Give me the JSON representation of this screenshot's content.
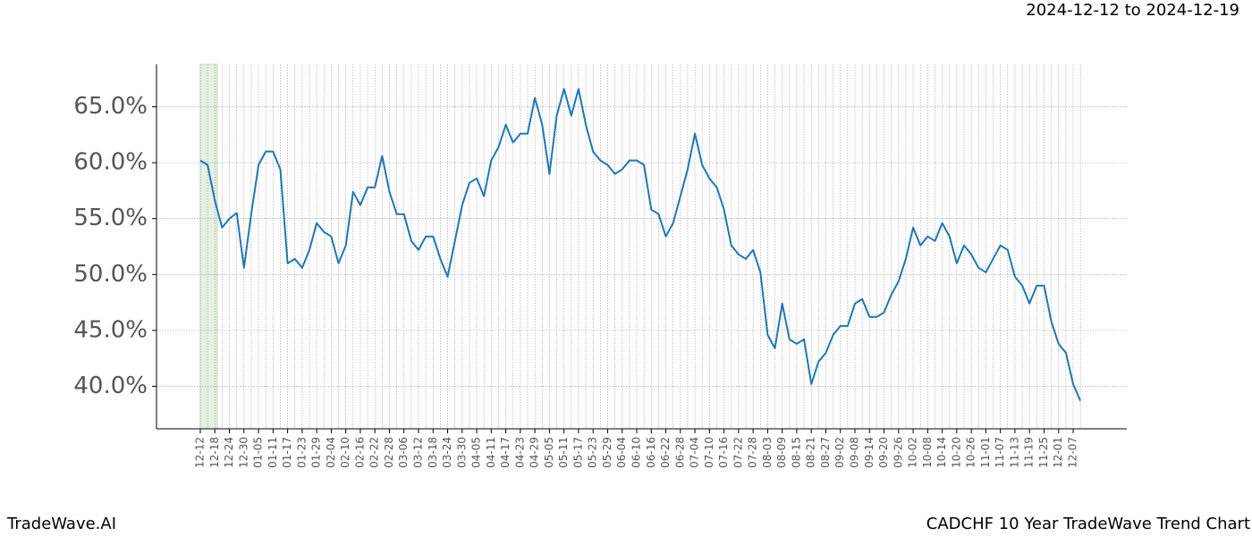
{
  "chart_data": {
    "type": "line",
    "subtitle": "2024-12-12 to 2024-12-19",
    "footer_left": "TradeWave.AI",
    "footer_right": "CADCHF 10 Year TradeWave Trend Chart",
    "categories": [
      "12-12",
      null,
      "12-18",
      null,
      "12-24",
      null,
      "12-30",
      null,
      "01-05",
      null,
      "01-11",
      null,
      "01-17",
      null,
      "01-23",
      null,
      "01-29",
      null,
      "02-04",
      null,
      "02-10",
      null,
      "02-16",
      null,
      "02-22",
      null,
      "02-28",
      null,
      "03-06",
      null,
      "03-12",
      null,
      "03-18",
      null,
      "03-24",
      null,
      "03-30",
      null,
      "04-05",
      null,
      "04-11",
      null,
      "04-17",
      null,
      "04-23",
      null,
      "04-29",
      null,
      "05-05",
      null,
      "05-11",
      null,
      "05-17",
      null,
      "05-23",
      null,
      "05-29",
      null,
      "06-04",
      null,
      "06-10",
      null,
      "06-16",
      null,
      "06-22",
      null,
      "06-28",
      null,
      "07-04",
      null,
      "07-10",
      null,
      "07-16",
      null,
      "07-22",
      null,
      "07-28",
      null,
      "08-03",
      null,
      "08-09",
      null,
      "08-15",
      null,
      "08-21",
      null,
      "08-27",
      null,
      "09-02",
      null,
      "09-08",
      null,
      "09-14",
      null,
      "09-20",
      null,
      "09-26",
      null,
      "10-02",
      null,
      "10-08",
      null,
      "10-14",
      null,
      "10-20",
      null,
      "10-26",
      null,
      "11-01",
      null,
      "11-07",
      null,
      "11-13",
      null,
      "11-19",
      null,
      "11-25",
      null,
      "12-01",
      null,
      "12-07",
      null
    ],
    "series": [
      {
        "color": "#1f77b4",
        "values": [
          60.2,
          59.8,
          56.6,
          54.2,
          55.0,
          55.5,
          50.6,
          55.4,
          59.8,
          61.0,
          61.0,
          59.4,
          51.0,
          51.4,
          50.6,
          52.2,
          54.6,
          53.8,
          53.4,
          51.0,
          52.6,
          57.4,
          56.2,
          57.8,
          57.8,
          60.6,
          57.4,
          55.4,
          55.4,
          53.0,
          52.2,
          53.4,
          53.4,
          51.4,
          49.8,
          53.0,
          56.2,
          58.2,
          58.6,
          57.0,
          60.2,
          61.4,
          63.4,
          61.8,
          62.6,
          62.6,
          65.8,
          63.4,
          59.0,
          64.2,
          66.6,
          64.2,
          66.6,
          63.4,
          61.0,
          60.2,
          59.8,
          59.0,
          59.4,
          60.2,
          60.2,
          59.8,
          55.8,
          55.4,
          53.4,
          54.6,
          57.0,
          59.4,
          62.6,
          59.8,
          58.6,
          57.8,
          55.8,
          52.6,
          51.8,
          51.4,
          52.2,
          50.2,
          44.6,
          43.4,
          47.4,
          44.2,
          43.8,
          44.2,
          40.2,
          42.2,
          43.0,
          44.6,
          45.4,
          45.4,
          47.4,
          47.8,
          46.2,
          46.2,
          46.6,
          48.2,
          49.4,
          51.4,
          54.2,
          52.6,
          53.4,
          53.0,
          54.6,
          53.4,
          51.0,
          52.6,
          51.8,
          50.6,
          50.2,
          51.4,
          52.6,
          52.2,
          49.8,
          49.0,
          47.4,
          49.0,
          49.0,
          45.8,
          43.8,
          43.0,
          40.2,
          38.7
        ]
      }
    ],
    "ylim": [
      36.2,
      68.8
    ],
    "yticks": [
      {
        "value": 40,
        "label": "40.0%"
      },
      {
        "value": 45,
        "label": "45.0%"
      },
      {
        "value": 50,
        "label": "50.0%"
      },
      {
        "value": 55,
        "label": "55.0%"
      },
      {
        "value": 60,
        "label": "60.0%"
      },
      {
        "value": 65,
        "label": "65.0%"
      }
    ],
    "grid": true
  }
}
